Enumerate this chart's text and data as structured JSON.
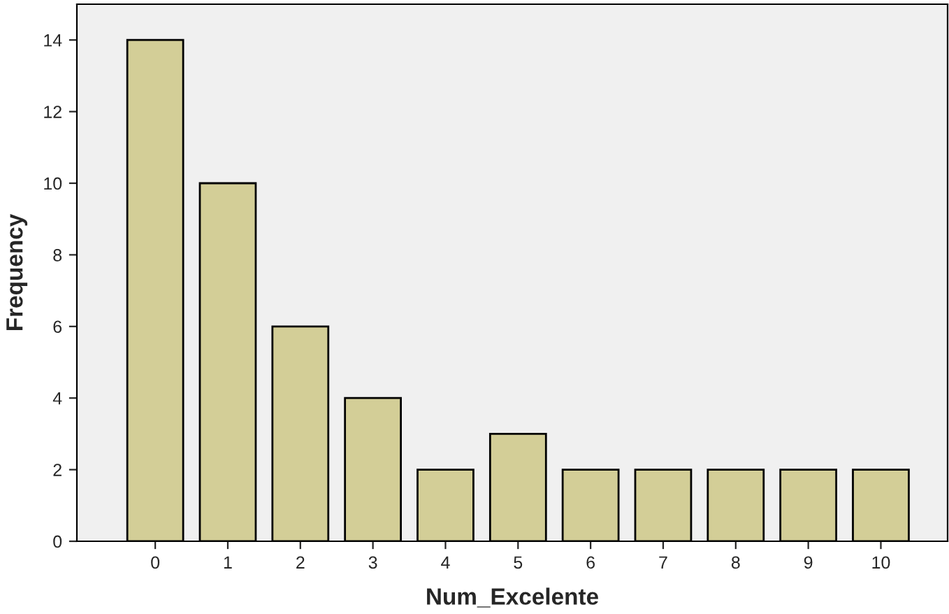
{
  "chart_data": {
    "type": "bar",
    "xlabel": "Num_Excelente",
    "ylabel": "Frequency",
    "categories": [
      "0",
      "1",
      "2",
      "3",
      "4",
      "5",
      "6",
      "7",
      "8",
      "9",
      "10"
    ],
    "values": [
      14,
      10,
      6,
      4,
      2,
      3,
      2,
      2,
      2,
      2,
      2
    ],
    "color": "#d3ce97",
    "ylim": [
      0,
      15
    ],
    "yticks": [
      0,
      2,
      4,
      6,
      8,
      10,
      12,
      14
    ],
    "grid": false
  }
}
